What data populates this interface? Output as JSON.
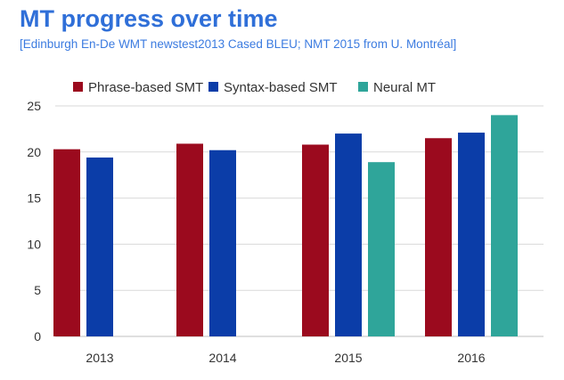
{
  "page": {
    "title": "MT progress over time",
    "subtitle": "[Edinburgh En-De WMT newstest2013 Cased BLEU; NMT 2015 from U. Montréal]"
  },
  "chart_data": {
    "type": "bar",
    "categories": [
      "2013",
      "2014",
      "2015",
      "2016"
    ],
    "series": [
      {
        "name": "Phrase-based SMT",
        "color": "#9b0a1e",
        "values": [
          20.3,
          20.9,
          20.8,
          21.5
        ]
      },
      {
        "name": "Syntax-based SMT",
        "color": "#0b3da8",
        "values": [
          19.4,
          20.2,
          22.0,
          22.1
        ]
      },
      {
        "name": "Neural MT",
        "color": "#2fa59a",
        "values": [
          null,
          null,
          18.9,
          24.0
        ]
      }
    ],
    "xlabel": "",
    "ylabel": "",
    "ylim": [
      0,
      25
    ],
    "yticks": [
      0,
      5,
      10,
      15,
      20,
      25
    ],
    "grid": true,
    "legend": "top"
  }
}
